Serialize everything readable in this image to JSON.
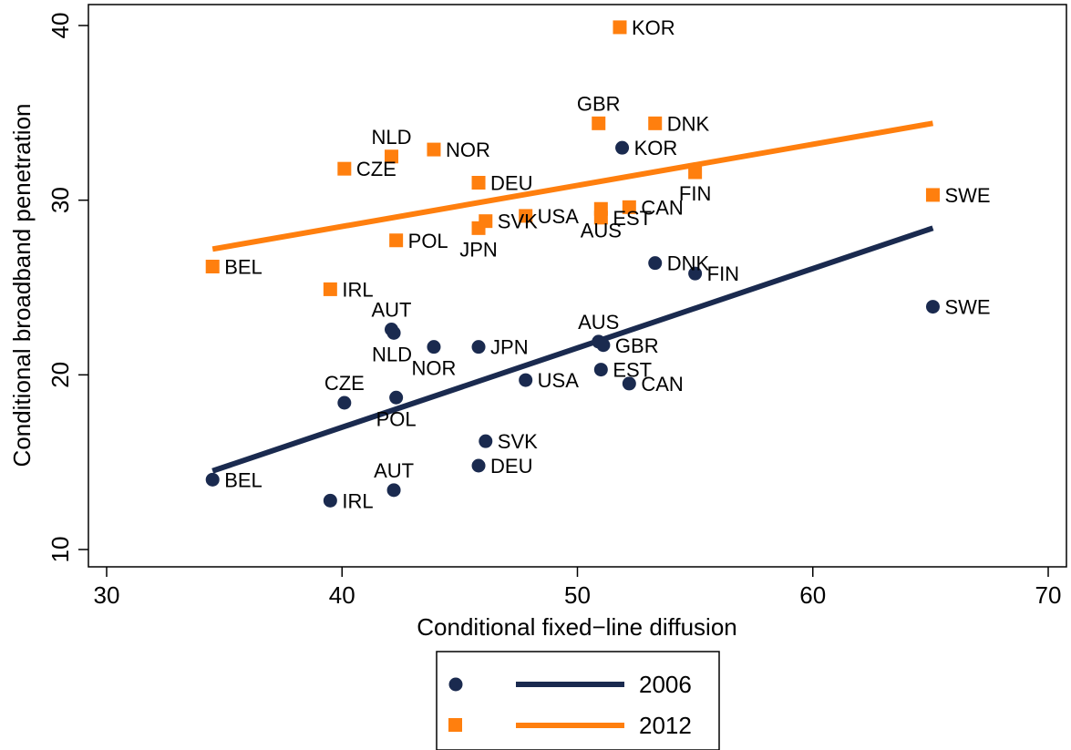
{
  "chart_data": {
    "type": "scatter",
    "xlabel": "Conditional fixed−line diffusion",
    "ylabel": "Conditional broadband penetration",
    "xlim": [
      30,
      70
    ],
    "ylim": [
      10,
      40
    ],
    "xticks": [
      30,
      40,
      50,
      60,
      70
    ],
    "yticks": [
      10,
      20,
      30,
      40
    ],
    "grid": false,
    "legend_position": "bottom",
    "series": [
      {
        "name": "2006",
        "marker": "circle",
        "color": "#1a2a4f",
        "points": [
          {
            "label": "BEL",
            "x": 34.5,
            "y": 14.0,
            "label_pos": "right"
          },
          {
            "label": "IRL",
            "x": 39.5,
            "y": 12.8,
            "label_pos": "right"
          },
          {
            "label": "CZE",
            "x": 40.1,
            "y": 18.4,
            "label_pos": "above"
          },
          {
            "label": "AUT",
            "x": 42.2,
            "y": 13.4,
            "label_pos": "above"
          },
          {
            "label": "POL",
            "x": 42.3,
            "y": 18.7,
            "label_pos": "below"
          },
          {
            "label": "AUT",
            "x": 42.1,
            "y": 22.6,
            "label_pos": "above"
          },
          {
            "label": "NLD",
            "x": 42.2,
            "y": 22.4,
            "label_pos": "below-left"
          },
          {
            "label": "NOR",
            "x": 43.9,
            "y": 21.6,
            "label_pos": "below"
          },
          {
            "label": "JPN",
            "x": 45.8,
            "y": 21.6,
            "label_pos": "right"
          },
          {
            "label": "DEU",
            "x": 45.8,
            "y": 14.8,
            "label_pos": "right"
          },
          {
            "label": "SVK",
            "x": 46.1,
            "y": 16.2,
            "label_pos": "right"
          },
          {
            "label": "USA",
            "x": 47.8,
            "y": 19.7,
            "label_pos": "right"
          },
          {
            "label": "AUS",
            "x": 50.9,
            "y": 21.9,
            "label_pos": "above"
          },
          {
            "label": "GBR",
            "x": 51.1,
            "y": 21.7,
            "label_pos": "right"
          },
          {
            "label": "EST",
            "x": 51.0,
            "y": 20.3,
            "label_pos": "right"
          },
          {
            "label": "KOR",
            "x": 51.9,
            "y": 33.0,
            "label_pos": "right"
          },
          {
            "label": "CAN",
            "x": 52.2,
            "y": 19.5,
            "label_pos": "right"
          },
          {
            "label": "DNK",
            "x": 53.3,
            "y": 26.4,
            "label_pos": "right"
          },
          {
            "label": "FIN",
            "x": 55.0,
            "y": 25.8,
            "label_pos": "right"
          },
          {
            "label": "SWE",
            "x": 65.1,
            "y": 23.9,
            "label_pos": "right"
          }
        ],
        "fit_line": {
          "x": [
            34.5,
            65.1
          ],
          "y": [
            14.5,
            28.4
          ]
        }
      },
      {
        "name": "2012",
        "marker": "square",
        "color": "#ff7f0e",
        "points": [
          {
            "label": "BEL",
            "x": 34.5,
            "y": 26.2,
            "label_pos": "right"
          },
          {
            "label": "IRL",
            "x": 39.5,
            "y": 24.9,
            "label_pos": "right"
          },
          {
            "label": "CZE",
            "x": 40.1,
            "y": 31.8,
            "label_pos": "right"
          },
          {
            "label": "NLD",
            "x": 42.1,
            "y": 32.5,
            "label_pos": "above-left"
          },
          {
            "label": "POL",
            "x": 42.3,
            "y": 27.7,
            "label_pos": "right"
          },
          {
            "label": "NOR",
            "x": 43.9,
            "y": 32.9,
            "label_pos": "right"
          },
          {
            "label": "DEU",
            "x": 45.8,
            "y": 31.0,
            "label_pos": "right"
          },
          {
            "label": "JPN",
            "x": 45.8,
            "y": 28.4,
            "label_pos": "below"
          },
          {
            "label": "SVK",
            "x": 46.1,
            "y": 28.8,
            "label_pos": "right"
          },
          {
            "label": "USA",
            "x": 47.8,
            "y": 29.1,
            "label_pos": "right"
          },
          {
            "label": "GBR",
            "x": 50.9,
            "y": 34.4,
            "label_pos": "above"
          },
          {
            "label": "AUS",
            "x": 51.0,
            "y": 29.5,
            "label_pos": "below"
          },
          {
            "label": "EST",
            "x": 51.0,
            "y": 29.0,
            "label_pos": "right"
          },
          {
            "label": "KOR",
            "x": 51.8,
            "y": 39.9,
            "label_pos": "right"
          },
          {
            "label": "CAN",
            "x": 52.2,
            "y": 29.6,
            "label_pos": "right"
          },
          {
            "label": "DNK",
            "x": 53.3,
            "y": 34.4,
            "label_pos": "right"
          },
          {
            "label": "FIN",
            "x": 55.0,
            "y": 31.6,
            "label_pos": "below"
          },
          {
            "label": "SWE",
            "x": 65.1,
            "y": 30.3,
            "label_pos": "right"
          }
        ],
        "fit_line": {
          "x": [
            34.5,
            65.1
          ],
          "y": [
            27.2,
            34.4
          ]
        }
      }
    ]
  }
}
